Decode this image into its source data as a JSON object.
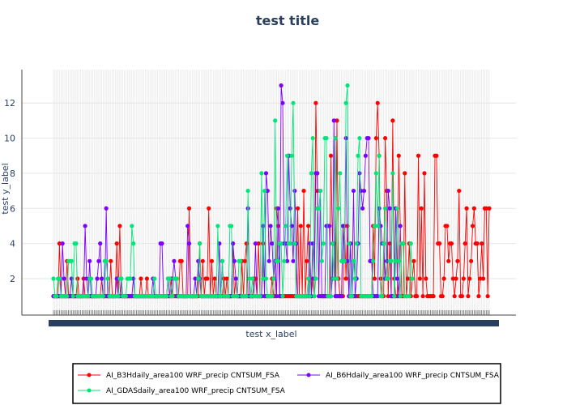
{
  "chart_data": {
    "type": "line",
    "title": "test title",
    "xlabel": "test x_label",
    "ylabel": "test y_label",
    "ylim": [
      0.2,
      13.9
    ],
    "yticks": [
      2,
      4,
      6,
      8,
      10,
      12
    ],
    "x_axis_unlabeled_dense_categories": 360,
    "grid": true,
    "legend_position": "bottom",
    "series": [
      {
        "name": "AI_B3Hdaily_area100 WRF_precip CNTSUM_FSA",
        "color": "#ff0000",
        "values": [
          1,
          1,
          1,
          1,
          4,
          1,
          1,
          1,
          1,
          3,
          1,
          1,
          1,
          1,
          1,
          1,
          2,
          1,
          1,
          1,
          2,
          1,
          1,
          1,
          1,
          1,
          1,
          1,
          1,
          1,
          1,
          1,
          2,
          1,
          1,
          1,
          1,
          1,
          3,
          1,
          1,
          1,
          4,
          1,
          5,
          1,
          1,
          1,
          1,
          1,
          1,
          1,
          1,
          1,
          1,
          1,
          1,
          1,
          2,
          1,
          1,
          1,
          2,
          1,
          1,
          1,
          1,
          1,
          1,
          1,
          1,
          1,
          1,
          1,
          1,
          1,
          1,
          1,
          2,
          1,
          1,
          1,
          1,
          1,
          3,
          3,
          1,
          1,
          1,
          1,
          6,
          1,
          1,
          1,
          1,
          1,
          1,
          4,
          1,
          3,
          1,
          2,
          2,
          6,
          1,
          3,
          1,
          2,
          1,
          1,
          1,
          1,
          1,
          2,
          1,
          2,
          1,
          1,
          1,
          4,
          1,
          2,
          1,
          1,
          1,
          3,
          1,
          3,
          4,
          1,
          1,
          1,
          1,
          2,
          2,
          1,
          4,
          1,
          1,
          4,
          1,
          1,
          1,
          1,
          1,
          2,
          1,
          1,
          6,
          5,
          1,
          1,
          1,
          1,
          1,
          1,
          1,
          1,
          1,
          1,
          1,
          1,
          6,
          1,
          5,
          1,
          7,
          1,
          3,
          5,
          1,
          1,
          2,
          1,
          12,
          7,
          1,
          1,
          1,
          1,
          1,
          1,
          1,
          1,
          9,
          4,
          4,
          1,
          11,
          2,
          1,
          1,
          1,
          5,
          2,
          5,
          1,
          1,
          1,
          1,
          1,
          1,
          1,
          1,
          1,
          1,
          1,
          1,
          1,
          1,
          1,
          1,
          5,
          2,
          10,
          12,
          9,
          2,
          1,
          1,
          10,
          7,
          1,
          4,
          1,
          11,
          2,
          1,
          1,
          9,
          5,
          1,
          1,
          8,
          1,
          2,
          4,
          1,
          2,
          3,
          1,
          1,
          9,
          2,
          6,
          1,
          8,
          2,
          1,
          1,
          1,
          1,
          1,
          9,
          9,
          4,
          4,
          1,
          1,
          2,
          5,
          5,
          3,
          4,
          4,
          2,
          1,
          2,
          3,
          7,
          1,
          1,
          2,
          4,
          6,
          1,
          2,
          3,
          5,
          6,
          4,
          4,
          1,
          2,
          4,
          2,
          6,
          6,
          1,
          6
        ]
      },
      {
        "name": "AI_B6Hdaily_area100 WRF_precip CNTSUM_FSA",
        "color": "#7b00ff",
        "values": [
          1,
          1,
          1,
          1,
          1,
          1,
          4,
          2,
          1,
          1,
          1,
          1,
          2,
          1,
          1,
          1,
          1,
          1,
          1,
          1,
          1,
          5,
          2,
          1,
          3,
          1,
          1,
          1,
          1,
          2,
          3,
          4,
          2,
          1,
          1,
          6,
          1,
          1,
          1,
          1,
          1,
          1,
          2,
          1,
          1,
          2,
          1,
          1,
          1,
          1,
          1,
          1,
          1,
          2,
          1,
          1,
          1,
          1,
          1,
          1,
          1,
          1,
          1,
          1,
          1,
          1,
          2,
          1,
          1,
          1,
          1,
          4,
          4,
          1,
          1,
          1,
          2,
          1,
          1,
          2,
          3,
          2,
          1,
          1,
          1,
          1,
          1,
          1,
          1,
          5,
          4,
          1,
          1,
          1,
          2,
          1,
          3,
          2,
          1,
          1,
          1,
          1,
          1,
          1,
          1,
          1,
          1,
          1,
          1,
          1,
          4,
          1,
          3,
          1,
          1,
          1,
          1,
          1,
          1,
          4,
          3,
          2,
          1,
          1,
          1,
          1,
          1,
          1,
          1,
          6,
          1,
          1,
          1,
          1,
          4,
          1,
          1,
          1,
          1,
          5,
          1,
          8,
          7,
          3,
          5,
          4,
          2,
          3,
          1,
          6,
          1,
          13,
          12,
          4,
          4,
          3,
          9,
          6,
          5,
          3,
          7,
          4,
          1,
          1,
          1,
          1,
          1,
          1,
          1,
          1,
          4,
          1,
          4,
          2,
          8,
          8,
          1,
          7,
          1,
          1,
          1,
          5,
          5,
          5,
          1,
          2,
          11,
          1,
          1,
          1,
          1,
          1,
          5,
          3,
          10,
          3,
          1,
          4,
          1,
          7,
          1,
          2,
          4,
          8,
          7,
          6,
          7,
          9,
          10,
          10,
          3,
          3,
          1,
          1,
          1,
          1,
          6,
          5,
          4,
          4,
          2,
          3,
          7,
          6,
          1,
          1,
          1,
          6,
          2,
          1,
          5
        ]
      },
      {
        "name": "AI_GDASdaily_area100 WRF_precip CNTSUM_FSA",
        "color": "#00e676",
        "values": [
          2,
          1,
          1,
          2,
          2,
          1,
          1,
          1,
          1,
          1,
          3,
          3,
          3,
          1,
          4,
          4,
          1,
          1,
          1,
          1,
          1,
          1,
          1,
          1,
          2,
          2,
          1,
          1,
          1,
          1,
          1,
          1,
          1,
          1,
          3,
          3,
          2,
          1,
          1,
          1,
          1,
          1,
          1,
          1,
          2,
          2,
          1,
          1,
          1,
          2,
          2,
          2,
          5,
          4,
          1,
          1,
          1,
          1,
          1,
          1,
          1,
          1,
          1,
          1,
          1,
          1,
          1,
          2,
          1,
          1,
          1,
          1,
          1,
          1,
          1,
          1,
          2,
          2,
          1,
          1,
          2,
          2,
          2,
          1,
          1,
          1,
          1,
          1,
          1,
          1,
          1,
          1,
          1,
          1,
          1,
          1,
          2,
          4,
          1,
          1,
          1,
          1,
          1,
          1,
          1,
          1,
          1,
          1,
          1,
          5,
          1,
          1,
          3,
          1,
          1,
          1,
          1,
          5,
          5,
          1,
          1,
          1,
          1,
          3,
          3,
          1,
          1,
          1,
          1,
          7,
          2,
          1,
          2,
          1,
          1,
          1,
          1,
          1,
          8,
          2,
          7,
          2,
          1,
          1,
          1,
          1,
          2,
          11,
          3,
          3,
          4,
          4,
          1,
          3,
          5,
          9,
          4,
          4,
          9,
          12,
          4,
          1,
          1,
          1,
          1,
          1,
          1,
          1,
          1,
          2,
          1,
          8,
          10,
          1,
          2,
          6,
          6,
          7,
          3,
          4,
          10,
          10,
          1,
          1,
          1,
          4,
          2,
          10,
          2,
          6,
          8,
          3,
          3,
          3,
          12,
          13,
          4,
          1,
          1,
          3,
          2,
          4,
          9,
          10,
          1,
          1,
          1,
          1,
          1,
          1,
          1,
          1,
          3,
          5,
          8,
          5,
          9,
          1,
          1,
          4,
          6,
          2,
          2,
          3,
          3,
          8,
          1,
          3,
          6,
          3,
          1,
          4,
          4,
          1,
          1,
          1,
          1,
          4,
          2
        ]
      }
    ]
  }
}
